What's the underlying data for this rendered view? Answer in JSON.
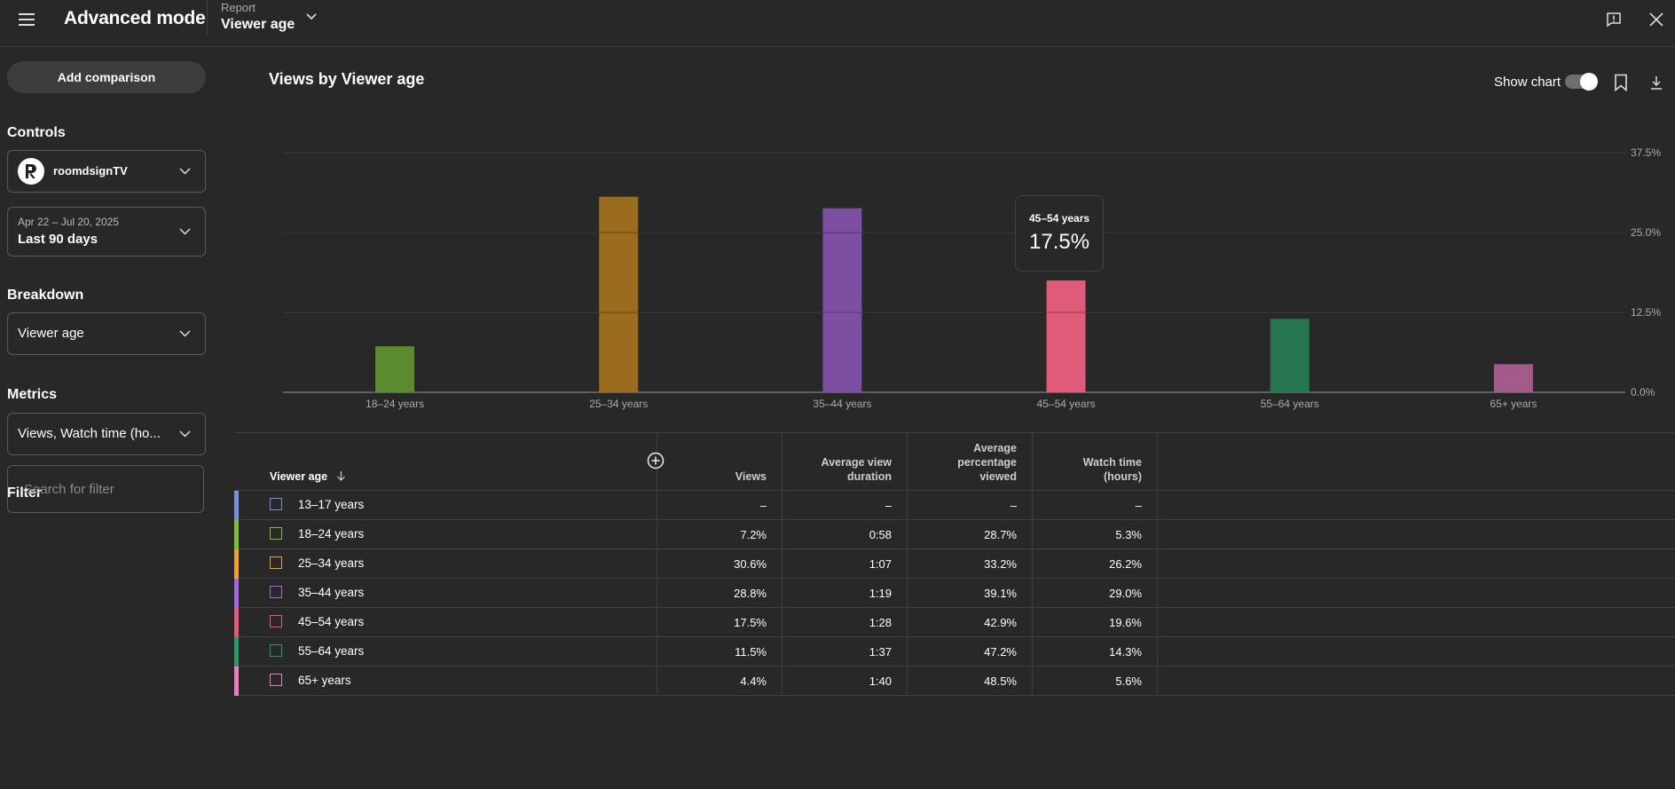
{
  "topbar": {
    "title": "Advanced mode",
    "report_caption": "Report",
    "report_value": "Viewer age"
  },
  "sidebar": {
    "add_comparison": "Add comparison",
    "controls_title": "Controls",
    "channel_name": "roomdsignTV",
    "date_range": "Apr 22 – Jul 20, 2025",
    "date_preset": "Last 90 days",
    "breakdown_title": "Breakdown",
    "breakdown_value": "Viewer age",
    "metrics_title": "Metrics",
    "metrics_value": "Views, Watch time (ho...",
    "filter_title": "Filter",
    "filter_placeholder": "Search for filter"
  },
  "chart_header": {
    "title": "Views by Viewer age",
    "show_chart_label": "Show chart"
  },
  "tooltip": {
    "category": "45–54 years",
    "value": "17.5%"
  },
  "chart_data": {
    "type": "bar",
    "title": "Views by Viewer age",
    "categories": [
      "18–24 years",
      "25–34 years",
      "35–44 years",
      "45–54 years",
      "55–64 years",
      "65+ years"
    ],
    "values": [
      7.2,
      30.6,
      28.8,
      17.5,
      11.5,
      4.4
    ],
    "colors": [
      "#5b8a2f",
      "#9c6c1e",
      "#7c4fa3",
      "#e05a7a",
      "#267550",
      "#a35c8a"
    ],
    "ylim": [
      0,
      37.5
    ],
    "y_ticks": [
      0,
      12.5,
      25,
      37.5
    ],
    "y_tick_labels": [
      "0.0%",
      "12.5%",
      "25.0%",
      "37.5%"
    ],
    "grid": true
  },
  "table": {
    "headers": {
      "dimension": "Viewer age",
      "views": "Views",
      "avd_line1": "Average view",
      "avd_line2": "duration",
      "apv_line1": "Average",
      "apv_line2": "percentage",
      "apv_line3": "viewed",
      "wt_line1": "Watch time",
      "wt_line2": "(hours)"
    },
    "rows": [
      {
        "label": "13–17 years",
        "views": "–",
        "avd": "–",
        "apv": "–",
        "wt": "–",
        "color": "#7b8fe0"
      },
      {
        "label": "18–24 years",
        "views": "7.2%",
        "avd": "0:58",
        "apv": "28.7%",
        "wt": "5.3%",
        "color": "#7bbf3a"
      },
      {
        "label": "25–34 years",
        "views": "30.6%",
        "avd": "1:07",
        "apv": "33.2%",
        "wt": "26.2%",
        "color": "#f0a030"
      },
      {
        "label": "35–44 years",
        "views": "28.8%",
        "avd": "1:19",
        "apv": "39.1%",
        "wt": "29.0%",
        "color": "#a865e0"
      },
      {
        "label": "45–54 years",
        "views": "17.5%",
        "avd": "1:28",
        "apv": "42.9%",
        "wt": "19.6%",
        "color": "#e05a7a"
      },
      {
        "label": "55–64 years",
        "views": "11.5%",
        "avd": "1:37",
        "apv": "47.2%",
        "wt": "14.3%",
        "color": "#2a9a6a"
      },
      {
        "label": "65+ years",
        "views": "4.4%",
        "avd": "1:40",
        "apv": "48.5%",
        "wt": "5.6%",
        "color": "#f07ac0"
      }
    ]
  }
}
